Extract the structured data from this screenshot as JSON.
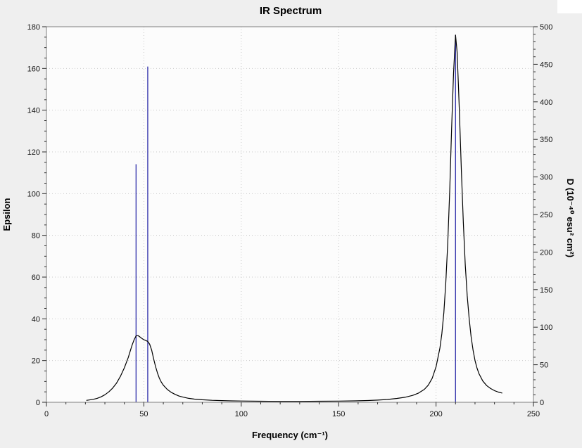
{
  "window": {
    "background": "#efefef"
  },
  "chart_data": {
    "type": "line",
    "title": "IR Spectrum",
    "x_axis": {
      "label": "Frequency (cm⁻¹)",
      "range": [
        0,
        250
      ],
      "ticks": [
        0,
        50,
        100,
        150,
        200,
        250
      ],
      "minor_step": 10
    },
    "y_left_axis": {
      "label": "Epsilon",
      "range": [
        0,
        180
      ],
      "ticks": [
        0,
        20,
        40,
        60,
        80,
        100,
        120,
        140,
        160,
        180
      ],
      "minor_step": 5
    },
    "y_right_axis": {
      "label": "D (10⁻⁴⁰ esu² cm²)",
      "range": [
        0,
        500
      ],
      "ticks": [
        0,
        50,
        100,
        150,
        200,
        250,
        300,
        350,
        400,
        450,
        500
      ],
      "minor_step": 10
    },
    "grid": "dotted",
    "legend": "none",
    "stems": [
      {
        "frequency": 46,
        "d": 317
      },
      {
        "frequency": 52,
        "d": 447
      },
      {
        "frequency": 210,
        "d": 489
      }
    ],
    "curve": {
      "name": "epsilon-broadened-spectrum",
      "y_axis": "left",
      "points": [
        [
          20.5,
          0.9
        ],
        [
          22,
          1.1
        ],
        [
          24,
          1.4
        ],
        [
          26,
          1.9
        ],
        [
          28,
          2.6
        ],
        [
          30,
          3.6
        ],
        [
          32,
          5.0
        ],
        [
          34,
          6.8
        ],
        [
          36,
          9.2
        ],
        [
          38,
          12.5
        ],
        [
          40,
          16.5
        ],
        [
          42,
          21.5
        ],
        [
          43,
          24.5
        ],
        [
          44,
          27.5
        ],
        [
          45,
          30.0
        ],
        [
          46,
          31.8
        ],
        [
          47,
          32.0
        ],
        [
          48,
          31.3
        ],
        [
          49,
          30.6
        ],
        [
          50,
          30.0
        ],
        [
          51,
          29.6
        ],
        [
          52,
          29.2
        ],
        [
          53,
          27.8
        ],
        [
          54,
          25.0
        ],
        [
          55,
          21.0
        ],
        [
          56,
          17.2
        ],
        [
          57,
          14.0
        ],
        [
          58,
          11.5
        ],
        [
          59,
          9.6
        ],
        [
          60,
          8.2
        ],
        [
          62,
          6.2
        ],
        [
          64,
          4.8
        ],
        [
          66,
          3.8
        ],
        [
          68,
          3.0
        ],
        [
          70,
          2.5
        ],
        [
          73,
          1.9
        ],
        [
          76,
          1.5
        ],
        [
          80,
          1.2
        ],
        [
          85,
          0.95
        ],
        [
          90,
          0.8
        ],
        [
          95,
          0.68
        ],
        [
          100,
          0.6
        ],
        [
          110,
          0.5
        ],
        [
          120,
          0.45
        ],
        [
          130,
          0.45
        ],
        [
          140,
          0.5
        ],
        [
          150,
          0.58
        ],
        [
          158,
          0.68
        ],
        [
          165,
          0.85
        ],
        [
          170,
          1.05
        ],
        [
          175,
          1.35
        ],
        [
          180,
          1.85
        ],
        [
          184,
          2.4
        ],
        [
          188,
          3.3
        ],
        [
          191,
          4.4
        ],
        [
          194,
          6.2
        ],
        [
          196,
          8.2
        ],
        [
          198,
          11.5
        ],
        [
          200,
          17.0
        ],
        [
          202,
          26.0
        ],
        [
          203,
          33.0
        ],
        [
          204,
          43.0
        ],
        [
          205,
          57.0
        ],
        [
          206,
          76.0
        ],
        [
          207,
          101.0
        ],
        [
          208,
          131.0
        ],
        [
          209,
          158.0
        ],
        [
          210,
          176.0
        ],
        [
          210.8,
          168.0
        ],
        [
          211.5,
          152.0
        ],
        [
          212,
          139.0
        ],
        [
          213,
          111.0
        ],
        [
          214,
          86.0
        ],
        [
          215,
          66.0
        ],
        [
          216,
          51.0
        ],
        [
          217,
          40.0
        ],
        [
          218,
          31.5
        ],
        [
          219,
          25.0
        ],
        [
          220,
          20.0
        ],
        [
          221,
          16.5
        ],
        [
          222,
          13.8
        ],
        [
          224,
          10.2
        ],
        [
          226,
          8.0
        ],
        [
          228,
          6.6
        ],
        [
          230,
          5.6
        ],
        [
          232,
          4.9
        ],
        [
          234,
          4.4
        ]
      ]
    },
    "colors": {
      "curve": "#000000",
      "stems": "#2b2ba8",
      "grid": "#c9c9c9",
      "plot_bg": "#fcfcfc",
      "frame": "#7f7f7f",
      "ticks": "#2a2a2a",
      "background": "#efefef",
      "corner": "#ffffff"
    }
  }
}
